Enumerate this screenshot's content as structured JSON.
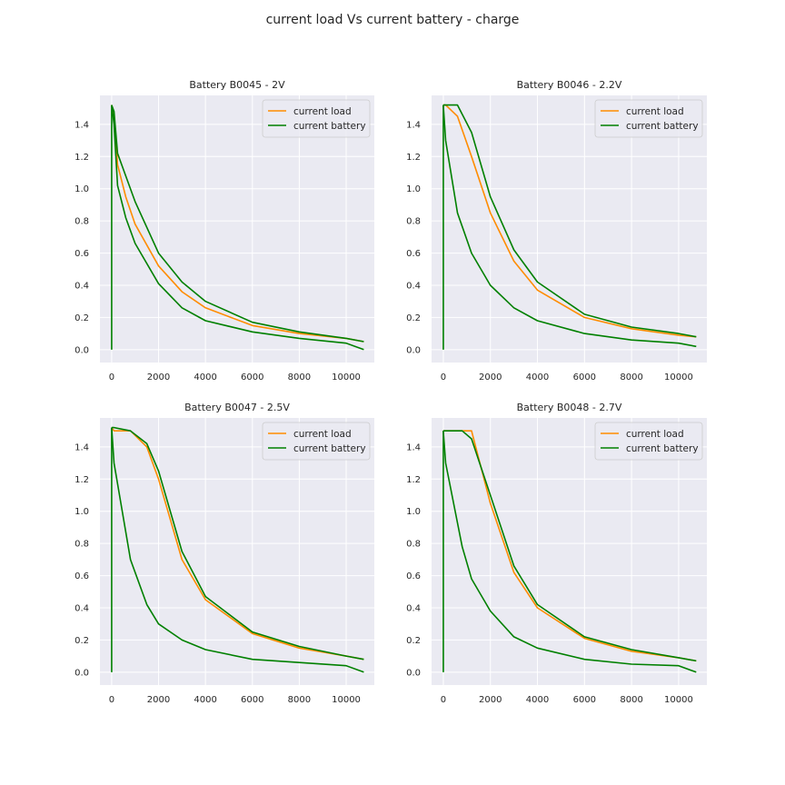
{
  "figure_title": "current load Vs current battery - charge",
  "colors": {
    "load": "#ff8c00",
    "battery": "#008000",
    "axes_bg": "#eaeaf2",
    "grid": "#ffffff"
  },
  "chart_data": [
    {
      "type": "line",
      "title": "Battery B0045 - 2V",
      "xlabel": "",
      "ylabel": "",
      "xlim": [
        -500,
        11200
      ],
      "ylim": [
        -0.08,
        1.58
      ],
      "xticks": [
        0,
        2000,
        4000,
        6000,
        8000,
        10000
      ],
      "yticks": [
        0.0,
        0.2,
        0.4,
        0.6,
        0.8,
        1.0,
        1.2,
        1.4
      ],
      "legend": [
        "current load",
        "current battery"
      ],
      "legend_position": "upper right",
      "series": [
        {
          "name": "current load",
          "x": [
            0,
            100,
            250,
            600,
            1000,
            2000,
            3000,
            4000,
            6000,
            8000,
            10000,
            10750
          ],
          "y": [
            1.52,
            1.45,
            1.15,
            0.95,
            0.78,
            0.52,
            0.36,
            0.26,
            0.15,
            0.1,
            0.07,
            0.05
          ]
        },
        {
          "name": "current battery",
          "x": [
            0,
            100,
            250,
            600,
            1000,
            2000,
            3000,
            4000,
            6000,
            8000,
            10000,
            10750
          ],
          "y": [
            1.52,
            1.48,
            1.22,
            1.08,
            0.92,
            0.6,
            0.42,
            0.3,
            0.17,
            0.11,
            0.07,
            0.05
          ]
        },
        {
          "name": "current battery",
          "x": [
            0,
            100,
            250,
            600,
            1000,
            2000,
            3000,
            4000,
            6000,
            8000,
            10000,
            10750
          ],
          "y": [
            1.52,
            1.4,
            1.02,
            0.82,
            0.66,
            0.41,
            0.26,
            0.18,
            0.11,
            0.07,
            0.04,
            0.0
          ]
        }
      ]
    },
    {
      "type": "line",
      "title": "Battery B0046 - 2.2V",
      "xlabel": "",
      "ylabel": "",
      "xlim": [
        -500,
        11200
      ],
      "ylim": [
        -0.08,
        1.58
      ],
      "xticks": [
        0,
        2000,
        4000,
        6000,
        8000,
        10000
      ],
      "yticks": [
        0.0,
        0.2,
        0.4,
        0.6,
        0.8,
        1.0,
        1.2,
        1.4
      ],
      "legend": [
        "current load",
        "current battery"
      ],
      "legend_position": "upper right",
      "series": [
        {
          "name": "current load",
          "x": [
            0,
            100,
            600,
            1200,
            2000,
            3000,
            4000,
            6000,
            8000,
            10000,
            10750
          ],
          "y": [
            1.52,
            1.52,
            1.45,
            1.2,
            0.85,
            0.55,
            0.37,
            0.2,
            0.13,
            0.09,
            0.08
          ]
        },
        {
          "name": "current battery",
          "x": [
            0,
            100,
            600,
            1200,
            2000,
            3000,
            4000,
            6000,
            8000,
            10000,
            10750
          ],
          "y": [
            1.52,
            1.52,
            1.52,
            1.35,
            0.95,
            0.62,
            0.42,
            0.22,
            0.14,
            0.1,
            0.08
          ]
        },
        {
          "name": "current battery",
          "x": [
            0,
            100,
            600,
            1200,
            2000,
            3000,
            4000,
            6000,
            8000,
            10000,
            10750
          ],
          "y": [
            1.52,
            1.3,
            0.85,
            0.6,
            0.4,
            0.26,
            0.18,
            0.1,
            0.06,
            0.04,
            0.02
          ]
        }
      ]
    },
    {
      "type": "line",
      "title": "Battery B0047 - 2.5V",
      "xlabel": "",
      "ylabel": "",
      "xlim": [
        -500,
        11200
      ],
      "ylim": [
        -0.08,
        1.58
      ],
      "xticks": [
        0,
        2000,
        4000,
        6000,
        8000,
        10000
      ],
      "yticks": [
        0.0,
        0.2,
        0.4,
        0.6,
        0.8,
        1.0,
        1.2,
        1.4
      ],
      "legend": [
        "current load",
        "current battery"
      ],
      "legend_position": "upper right",
      "series": [
        {
          "name": "current load",
          "x": [
            0,
            100,
            800,
            1500,
            2000,
            3000,
            4000,
            6000,
            8000,
            10000,
            10750
          ],
          "y": [
            1.52,
            1.5,
            1.5,
            1.4,
            1.2,
            0.7,
            0.45,
            0.24,
            0.15,
            0.1,
            0.08
          ]
        },
        {
          "name": "current battery",
          "x": [
            0,
            100,
            800,
            1500,
            2000,
            3000,
            4000,
            6000,
            8000,
            10000,
            10750
          ],
          "y": [
            1.52,
            1.52,
            1.5,
            1.42,
            1.25,
            0.75,
            0.47,
            0.25,
            0.16,
            0.1,
            0.08
          ]
        },
        {
          "name": "current battery",
          "x": [
            0,
            100,
            800,
            1500,
            2000,
            3000,
            4000,
            6000,
            8000,
            10000,
            10750
          ],
          "y": [
            1.52,
            1.3,
            0.7,
            0.42,
            0.3,
            0.2,
            0.14,
            0.08,
            0.06,
            0.04,
            0.0
          ]
        }
      ]
    },
    {
      "type": "line",
      "title": "Battery B0048 - 2.7V",
      "xlabel": "",
      "ylabel": "",
      "xlim": [
        -500,
        11200
      ],
      "ylim": [
        -0.08,
        1.58
      ],
      "xticks": [
        0,
        2000,
        4000,
        6000,
        8000,
        10000
      ],
      "yticks": [
        0.0,
        0.2,
        0.4,
        0.6,
        0.8,
        1.0,
        1.2,
        1.4
      ],
      "legend": [
        "current load",
        "current battery"
      ],
      "legend_position": "upper right",
      "series": [
        {
          "name": "current load",
          "x": [
            0,
            100,
            800,
            1200,
            2000,
            3000,
            4000,
            6000,
            8000,
            10000,
            10750
          ],
          "y": [
            1.5,
            1.5,
            1.5,
            1.5,
            1.05,
            0.62,
            0.4,
            0.21,
            0.13,
            0.09,
            0.07
          ]
        },
        {
          "name": "current battery",
          "x": [
            0,
            100,
            800,
            1200,
            2000,
            3000,
            4000,
            6000,
            8000,
            10000,
            10750
          ],
          "y": [
            1.5,
            1.5,
            1.5,
            1.45,
            1.1,
            0.66,
            0.42,
            0.22,
            0.14,
            0.09,
            0.07
          ]
        },
        {
          "name": "current battery",
          "x": [
            0,
            100,
            800,
            1200,
            2000,
            3000,
            4000,
            6000,
            8000,
            10000,
            10750
          ],
          "y": [
            1.5,
            1.3,
            0.78,
            0.58,
            0.38,
            0.22,
            0.15,
            0.08,
            0.05,
            0.04,
            0.0
          ]
        }
      ]
    }
  ]
}
